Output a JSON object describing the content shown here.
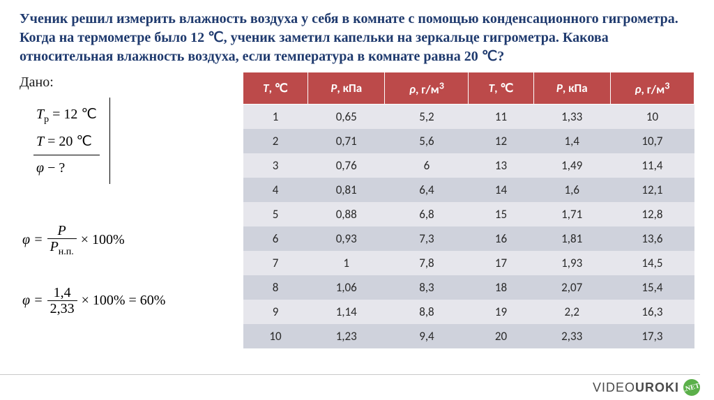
{
  "problem_text": "Ученик решил измерить влажность воздуха у себя в комнате с помощью конденсационного гигрометра. Когда на термометре было 12 ℃, ученик заметил капельки на зеркальце гигрометра. Какова относительная влажность воздуха, если температура в комнате равна 20 ℃?",
  "given": {
    "label": "Дано:",
    "line1_lhs": "T",
    "line1_sub": "р",
    "line1_rhs": " = 12 ℃",
    "line2_lhs": "T",
    "line2_rhs": " = 20 ℃",
    "find_sym": "φ",
    "find_rhs": " − ?"
  },
  "formula1": {
    "lhs": "φ = ",
    "num": "P",
    "den_sym": "P",
    "den_sub": "н.п.",
    "tail": " × 100%"
  },
  "formula2": {
    "lhs": "φ = ",
    "num": "1,4",
    "den": "2,33",
    "tail": " × 100% = 60%"
  },
  "table": {
    "header_bg": "#bc4a4a",
    "row_odd_bg": "#e6e6ec",
    "row_even_bg": "#cfd2dc",
    "col_T_sym": "T",
    "col_T_unit": ", ℃",
    "col_P_sym": "P",
    "col_P_unit": ", кПа",
    "col_rho_sym": "ρ",
    "col_rho_unit_pre": ", г/м",
    "col_rho_unit_sup": "3",
    "rows": [
      {
        "t1": "1",
        "p1": "0,65",
        "r1": "5,2",
        "t2": "11",
        "p2": "1,33",
        "r2": "10"
      },
      {
        "t1": "2",
        "p1": "0,71",
        "r1": "5,6",
        "t2": "12",
        "p2": "1,4",
        "r2": "10,7"
      },
      {
        "t1": "3",
        "p1": "0,76",
        "r1": "6",
        "t2": "13",
        "p2": "1,49",
        "r2": "11,4"
      },
      {
        "t1": "4",
        "p1": "0,81",
        "r1": "6,4",
        "t2": "14",
        "p2": "1,6",
        "r2": "12,1"
      },
      {
        "t1": "5",
        "p1": "0,88",
        "r1": "6,8",
        "t2": "15",
        "p2": "1,71",
        "r2": "12,8"
      },
      {
        "t1": "6",
        "p1": "0,93",
        "r1": "7,3",
        "t2": "16",
        "p2": "1,81",
        "r2": "13,6"
      },
      {
        "t1": "7",
        "p1": "1",
        "r1": "7,8",
        "t2": "17",
        "p2": "1,93",
        "r2": "14,5"
      },
      {
        "t1": "8",
        "p1": "1,06",
        "r1": "8,3",
        "t2": "18",
        "p2": "2,07",
        "r2": "15,4"
      },
      {
        "t1": "9",
        "p1": "1,14",
        "r1": "8,8",
        "t2": "19",
        "p2": "2,2",
        "r2": "16,3"
      },
      {
        "t1": "10",
        "p1": "1,23",
        "r1": "9,4",
        "t2": "20",
        "p2": "2,33",
        "r2": "17,3"
      }
    ]
  },
  "footer": {
    "brand_left": "VIDEO",
    "brand_right": "UROKI",
    "badge": ".NET"
  }
}
